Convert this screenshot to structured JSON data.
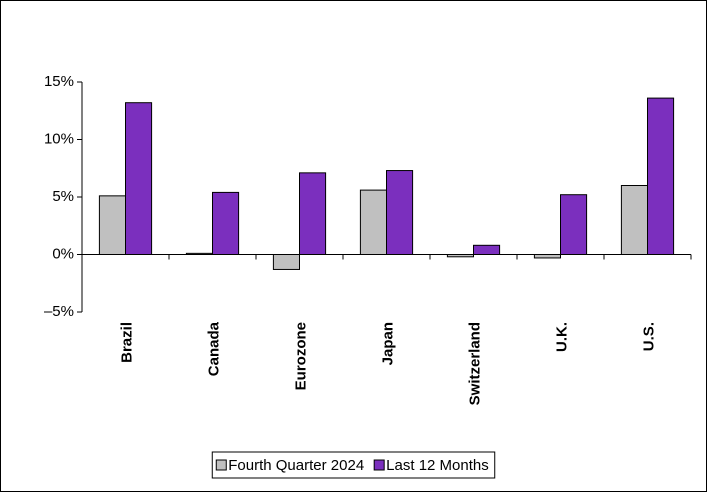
{
  "chart_data": {
    "type": "bar",
    "categories": [
      "Brazil",
      "Canada",
      "Eurozone",
      "Japan",
      "Switzerland",
      "U.K.",
      "U.S."
    ],
    "series": [
      {
        "name": "Fourth Quarter 2024",
        "color": "#c0c0c0",
        "values": [
          5.1,
          0.1,
          -1.3,
          5.6,
          -0.2,
          -0.3,
          6.0
        ]
      },
      {
        "name": "Last 12 Months",
        "color": "#7b2fbe",
        "values": [
          13.2,
          5.4,
          7.1,
          7.3,
          0.8,
          5.2,
          13.6
        ]
      }
    ],
    "ylim": [
      -5,
      15
    ],
    "yticks": [
      {
        "value": -5,
        "label": "–5%"
      },
      {
        "value": 0,
        "label": "0%"
      },
      {
        "value": 5,
        "label": "5%"
      },
      {
        "value": 10,
        "label": "10%"
      },
      {
        "value": 15,
        "label": "15%"
      }
    ],
    "legend": "bottom"
  }
}
